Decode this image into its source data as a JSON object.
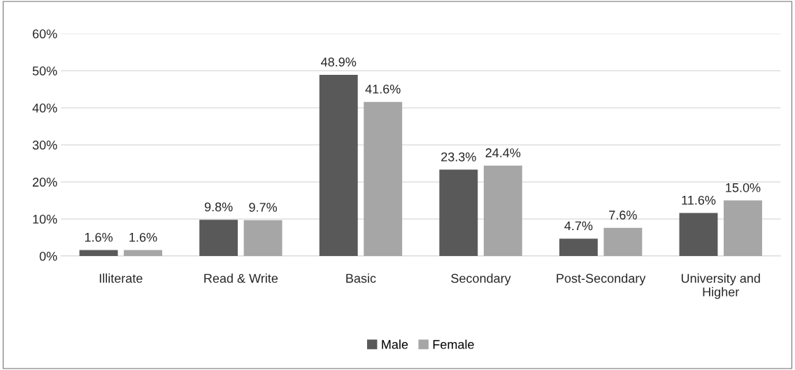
{
  "chart_data": {
    "type": "bar",
    "categories": [
      "Illiterate",
      "Read & Write",
      "Basic",
      "Secondary",
      "Post-Secondary",
      "University and\nHigher"
    ],
    "series": [
      {
        "name": "Male",
        "color": "#595959",
        "values": [
          1.6,
          9.8,
          48.9,
          23.3,
          4.7,
          11.6
        ],
        "value_labels": [
          "1.6%",
          "9.8%",
          "48.9%",
          "23.3%",
          "4.7%",
          "11.6%"
        ]
      },
      {
        "name": "Female",
        "color": "#a6a6a6",
        "values": [
          1.6,
          9.7,
          41.6,
          24.4,
          7.6,
          15.0
        ],
        "value_labels": [
          "1.6%",
          "9.7%",
          "41.6%",
          "24.4%",
          "7.6%",
          "15.0%"
        ]
      }
    ],
    "ylim": [
      0,
      60
    ],
    "yticks": [
      {
        "value": 0,
        "label": "0%"
      },
      {
        "value": 10,
        "label": "10%"
      },
      {
        "value": 20,
        "label": "20%"
      },
      {
        "value": 30,
        "label": "30%"
      },
      {
        "value": 40,
        "label": "40%"
      },
      {
        "value": 50,
        "label": "50%"
      },
      {
        "value": 60,
        "label": "60%"
      }
    ],
    "grid": "y",
    "legend": "bottom"
  }
}
